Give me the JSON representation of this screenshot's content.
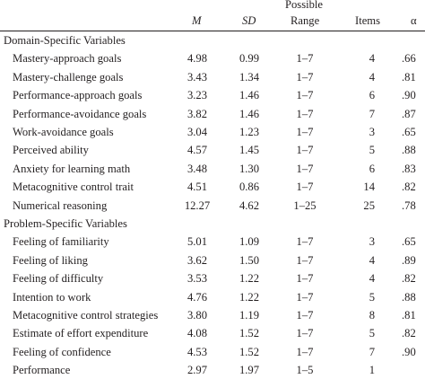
{
  "header": {
    "m": "M",
    "sd": "SD",
    "range_top": "Possible",
    "range_bottom": "Range",
    "items": "Items",
    "alpha": "α"
  },
  "sections": [
    {
      "title": "Domain-Specific Variables",
      "rows": [
        {
          "label": "Mastery-approach goals",
          "m": "4.98",
          "sd": "0.99",
          "range": "1–7",
          "items": "4",
          "alpha": ".66"
        },
        {
          "label": "Mastery-challenge goals",
          "m": "3.43",
          "sd": "1.34",
          "range": "1–7",
          "items": "4",
          "alpha": ".81"
        },
        {
          "label": "Performance-approach goals",
          "m": "3.23",
          "sd": "1.46",
          "range": "1–7",
          "items": "6",
          "alpha": ".90"
        },
        {
          "label": "Performance-avoidance goals",
          "m": "3.82",
          "sd": "1.46",
          "range": "1–7",
          "items": "7",
          "alpha": ".87"
        },
        {
          "label": "Work-avoidance goals",
          "m": "3.04",
          "sd": "1.23",
          "range": "1–7",
          "items": "3",
          "alpha": ".65"
        },
        {
          "label": "Perceived ability",
          "m": "4.57",
          "sd": "1.45",
          "range": "1–7",
          "items": "5",
          "alpha": ".88"
        },
        {
          "label": "Anxiety for learning math",
          "m": "3.48",
          "sd": "1.30",
          "range": "1–7",
          "items": "6",
          "alpha": ".83"
        },
        {
          "label": "Metacognitive control trait",
          "m": "4.51",
          "sd": "0.86",
          "range": "1–7",
          "items": "14",
          "alpha": ".82"
        },
        {
          "label": "Numerical reasoning",
          "m": "12.27",
          "sd": "4.62",
          "range": "1–25",
          "items": "25",
          "alpha": ".78"
        }
      ]
    },
    {
      "title": "Problem-Specific Variables",
      "rows": [
        {
          "label": "Feeling of familiarity",
          "m": "5.01",
          "sd": "1.09",
          "range": "1–7",
          "items": "3",
          "alpha": ".65"
        },
        {
          "label": "Feeling of liking",
          "m": "3.62",
          "sd": "1.50",
          "range": "1–7",
          "items": "4",
          "alpha": ".89"
        },
        {
          "label": "Feeling of difficulty",
          "m": "3.53",
          "sd": "1.22",
          "range": "1–7",
          "items": "4",
          "alpha": ".82"
        },
        {
          "label": "Intention to work",
          "m": "4.76",
          "sd": "1.22",
          "range": "1–7",
          "items": "5",
          "alpha": ".88"
        },
        {
          "label": "Metacognitive control strategies",
          "m": "3.80",
          "sd": "1.19",
          "range": "1–7",
          "items": "8",
          "alpha": ".81"
        },
        {
          "label": "Estimate of effort expenditure",
          "m": "4.08",
          "sd": "1.52",
          "range": "1–7",
          "items": "5",
          "alpha": ".82"
        },
        {
          "label": "Feeling of confidence",
          "m": "4.53",
          "sd": "1.52",
          "range": "1–7",
          "items": "7",
          "alpha": ".90"
        },
        {
          "label": "Performance",
          "m": "2.97",
          "sd": "1.97",
          "range": "1–5",
          "items": "1",
          "alpha": ""
        }
      ]
    }
  ]
}
